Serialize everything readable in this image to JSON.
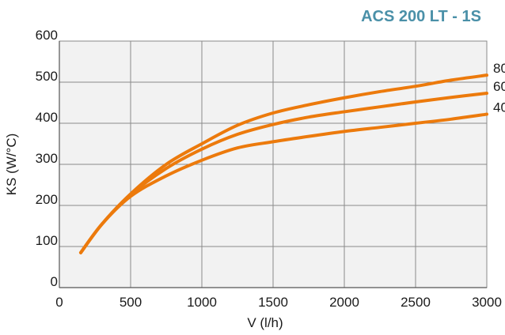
{
  "chart_data": {
    "type": "line",
    "title": "ACS 200 LT - 1S",
    "xlabel": "V (l/h)",
    "ylabel": "KS (W/°C)",
    "xlim": [
      0,
      3000
    ],
    "ylim": [
      0,
      600
    ],
    "xticks": [
      "0",
      "500",
      "1000",
      "1500",
      "2000",
      "2500",
      "3000"
    ],
    "yticks": [
      "0",
      "100",
      "200",
      "300",
      "400",
      "500",
      "600"
    ],
    "grid": true,
    "line_color": "#ec7a0c",
    "title_color": "#4a90a8",
    "plot_background": "#f2f2f2",
    "series": [
      {
        "name": "80",
        "x": [
          150,
          300,
          500,
          750,
          1000,
          1250,
          1500,
          1750,
          2000,
          2250,
          2500,
          2750,
          3000
        ],
        "y": [
          85,
          155,
          228,
          300,
          350,
          395,
          425,
          445,
          462,
          477,
          490,
          505,
          517
        ]
      },
      {
        "name": "60",
        "x": [
          150,
          300,
          500,
          750,
          1000,
          1250,
          1500,
          1750,
          2000,
          2250,
          2500,
          2750,
          3000
        ],
        "y": [
          85,
          155,
          226,
          290,
          337,
          373,
          397,
          415,
          428,
          440,
          452,
          463,
          473
        ]
      },
      {
        "name": "40",
        "x": [
          150,
          300,
          500,
          750,
          1000,
          1250,
          1500,
          1750,
          2000,
          2250,
          2500,
          2750,
          3000
        ],
        "y": [
          85,
          155,
          222,
          272,
          310,
          340,
          355,
          368,
          380,
          390,
          400,
          410,
          422
        ]
      }
    ]
  }
}
